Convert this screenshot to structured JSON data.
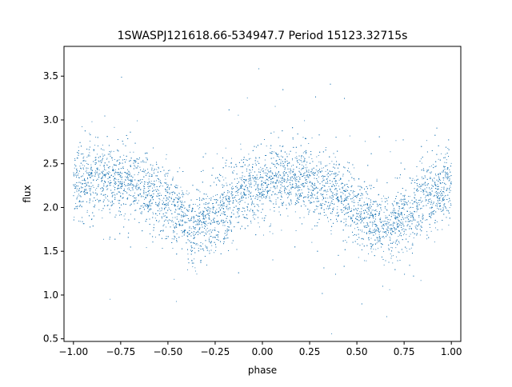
{
  "chart_data": {
    "type": "scatter",
    "title": "1SWASPJ121618.66-534947.7 Period 15123.32715s",
    "xlabel": "phase",
    "ylabel": "flux",
    "xlim": [
      -1.05,
      1.05
    ],
    "ylim": [
      0.47,
      3.84
    ],
    "x_ticks": [
      -1.0,
      -0.75,
      -0.5,
      -0.25,
      0.0,
      0.25,
      0.5,
      0.75,
      1.0
    ],
    "x_tick_labels": [
      "−1.00",
      "−0.75",
      "−0.50",
      "−0.25",
      "0.00",
      "0.25",
      "0.50",
      "0.75",
      "1.00"
    ],
    "y_ticks": [
      0.5,
      1.0,
      1.5,
      2.0,
      2.5,
      3.0,
      3.5
    ],
    "y_tick_labels": [
      "0.5",
      "1.0",
      "1.5",
      "2.0",
      "2.5",
      "3.0",
      "3.5"
    ],
    "grid": false,
    "legend": "none",
    "marker_color": "#1f77b4",
    "series": [
      {
        "phase": [
          -1.0,
          -0.9,
          -0.8,
          -0.7,
          -0.6,
          -0.5,
          -0.4,
          -0.35,
          -0.3,
          -0.2,
          -0.1,
          0.0,
          0.1,
          0.2,
          0.3,
          0.4,
          0.5,
          0.6,
          0.65,
          0.7,
          0.8,
          0.9,
          1.0
        ],
        "mean_flux": [
          2.25,
          2.3,
          2.32,
          2.3,
          2.2,
          2.05,
          1.82,
          1.75,
          1.8,
          2.0,
          2.18,
          2.28,
          2.32,
          2.3,
          2.25,
          2.15,
          2.0,
          1.82,
          1.75,
          1.8,
          2.0,
          2.15,
          2.25
        ],
        "scatter_sigma": 0.2
      }
    ]
  }
}
